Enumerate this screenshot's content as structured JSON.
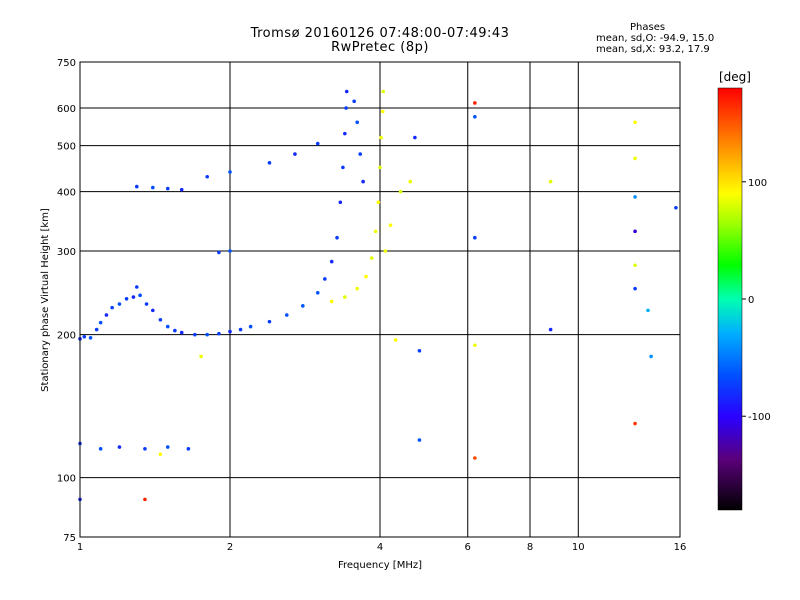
{
  "header": {
    "title_line1": "Tromsø 20160126 07:48:00-07:49:43",
    "title_line2": "RwPretec (8p)"
  },
  "stats": {
    "heading": "Phases",
    "line_o": "mean, sd,O: -94.9, 15.0",
    "line_x": "mean, sd,X:  93.2, 17.9"
  },
  "colorbar": {
    "unit_label": "[deg]",
    "range": [
      -180,
      180
    ],
    "ticks": [
      {
        "value": 100,
        "label": "100"
      },
      {
        "value": 0,
        "label": "0"
      },
      {
        "value": -100,
        "label": "-100"
      }
    ]
  },
  "chart_data": {
    "type": "scatter",
    "title": "Tromsø 20160126 07:48:00-07:49:43",
    "subtitle": "RwPretec (8p)",
    "xlabel": "Frequency [MHz]",
    "ylabel": "Stationary phase Virtual Height [km]",
    "x_scale": "log",
    "y_scale": "log",
    "xlim": [
      1,
      16
    ],
    "ylim": [
      75,
      750
    ],
    "grid": true,
    "x_ticks": [
      {
        "value": 1,
        "label": "1"
      },
      {
        "value": 2,
        "label": "2"
      },
      {
        "value": 4,
        "label": "4"
      },
      {
        "value": 6,
        "label": "6"
      },
      {
        "value": 8,
        "label": "8"
      },
      {
        "value": 10,
        "label": "10"
      },
      {
        "value": 16,
        "label": "16"
      }
    ],
    "y_ticks": [
      {
        "value": 75,
        "label": "75"
      },
      {
        "value": 100,
        "label": "100"
      },
      {
        "value": 200,
        "label": "200"
      },
      {
        "value": 300,
        "label": "300"
      },
      {
        "value": 400,
        "label": "400"
      },
      {
        "value": 500,
        "label": "500"
      },
      {
        "value": 600,
        "label": "600"
      },
      {
        "value": 750,
        "label": "750"
      }
    ],
    "color_by": "phase [deg]",
    "series": [
      {
        "mode": "O",
        "points": [
          {
            "x": 1.0,
            "y": 196,
            "phase": -110
          },
          {
            "x": 1.02,
            "y": 198,
            "phase": -105
          },
          {
            "x": 1.05,
            "y": 197,
            "phase": -100
          },
          {
            "x": 1.08,
            "y": 205,
            "phase": -105
          },
          {
            "x": 1.1,
            "y": 212,
            "phase": -100
          },
          {
            "x": 1.13,
            "y": 220,
            "phase": -110
          },
          {
            "x": 1.16,
            "y": 228,
            "phase": -105
          },
          {
            "x": 1.2,
            "y": 232,
            "phase": -100
          },
          {
            "x": 1.24,
            "y": 238,
            "phase": -105
          },
          {
            "x": 1.28,
            "y": 240,
            "phase": -110
          },
          {
            "x": 1.3,
            "y": 252,
            "phase": -105
          },
          {
            "x": 1.32,
            "y": 242,
            "phase": -100
          },
          {
            "x": 1.36,
            "y": 232,
            "phase": -105
          },
          {
            "x": 1.4,
            "y": 225,
            "phase": -110
          },
          {
            "x": 1.45,
            "y": 215,
            "phase": -105
          },
          {
            "x": 1.5,
            "y": 208,
            "phase": -100
          },
          {
            "x": 1.55,
            "y": 204,
            "phase": -105
          },
          {
            "x": 1.6,
            "y": 202,
            "phase": -110
          },
          {
            "x": 1.7,
            "y": 200,
            "phase": -105
          },
          {
            "x": 1.8,
            "y": 200,
            "phase": -100
          },
          {
            "x": 1.9,
            "y": 201,
            "phase": -105
          },
          {
            "x": 2.0,
            "y": 203,
            "phase": -110
          },
          {
            "x": 2.1,
            "y": 205,
            "phase": -105
          },
          {
            "x": 2.2,
            "y": 208,
            "phase": -100
          },
          {
            "x": 2.4,
            "y": 213,
            "phase": -105
          },
          {
            "x": 2.6,
            "y": 220,
            "phase": -100
          },
          {
            "x": 2.8,
            "y": 230,
            "phase": -95
          },
          {
            "x": 3.0,
            "y": 245,
            "phase": -100
          },
          {
            "x": 3.1,
            "y": 262,
            "phase": -105
          },
          {
            "x": 3.2,
            "y": 285,
            "phase": -110
          },
          {
            "x": 3.28,
            "y": 320,
            "phase": -105
          },
          {
            "x": 3.33,
            "y": 380,
            "phase": -110
          },
          {
            "x": 3.37,
            "y": 450,
            "phase": -105
          },
          {
            "x": 3.4,
            "y": 530,
            "phase": -110
          },
          {
            "x": 3.42,
            "y": 600,
            "phase": -105
          },
          {
            "x": 3.43,
            "y": 650,
            "phase": -110
          },
          {
            "x": 3.55,
            "y": 620,
            "phase": -105
          },
          {
            "x": 3.6,
            "y": 560,
            "phase": -100
          },
          {
            "x": 3.65,
            "y": 480,
            "phase": -105
          },
          {
            "x": 3.7,
            "y": 420,
            "phase": -110
          },
          {
            "x": 1.3,
            "y": 410,
            "phase": -105
          },
          {
            "x": 1.4,
            "y": 408,
            "phase": -100
          },
          {
            "x": 1.5,
            "y": 406,
            "phase": -105
          },
          {
            "x": 1.6,
            "y": 404,
            "phase": -110
          },
          {
            "x": 1.8,
            "y": 430,
            "phase": -105
          },
          {
            "x": 2.0,
            "y": 440,
            "phase": -100
          },
          {
            "x": 2.4,
            "y": 460,
            "phase": -105
          },
          {
            "x": 2.7,
            "y": 480,
            "phase": -110
          },
          {
            "x": 3.0,
            "y": 505,
            "phase": -105
          },
          {
            "x": 1.0,
            "y": 118,
            "phase": -105
          },
          {
            "x": 1.1,
            "y": 115,
            "phase": -100
          },
          {
            "x": 1.2,
            "y": 116,
            "phase": -110
          },
          {
            "x": 1.35,
            "y": 115,
            "phase": -105
          },
          {
            "x": 1.5,
            "y": 116,
            "phase": -100
          },
          {
            "x": 1.65,
            "y": 115,
            "phase": -105
          },
          {
            "x": 1.0,
            "y": 90,
            "phase": -110
          },
          {
            "x": 1.9,
            "y": 298,
            "phase": -105
          },
          {
            "x": 2.0,
            "y": 300,
            "phase": -100
          }
        ]
      },
      {
        "mode": "X",
        "points": [
          {
            "x": 3.2,
            "y": 235,
            "phase": 100
          },
          {
            "x": 3.4,
            "y": 240,
            "phase": 90
          },
          {
            "x": 3.6,
            "y": 250,
            "phase": 95
          },
          {
            "x": 3.75,
            "y": 265,
            "phase": 100
          },
          {
            "x": 3.85,
            "y": 290,
            "phase": 90
          },
          {
            "x": 3.92,
            "y": 330,
            "phase": 95
          },
          {
            "x": 3.97,
            "y": 380,
            "phase": 100
          },
          {
            "x": 4.0,
            "y": 450,
            "phase": 90
          },
          {
            "x": 4.02,
            "y": 520,
            "phase": 95
          },
          {
            "x": 4.05,
            "y": 590,
            "phase": 100
          },
          {
            "x": 4.06,
            "y": 650,
            "phase": 90
          },
          {
            "x": 4.1,
            "y": 300,
            "phase": 95
          },
          {
            "x": 4.2,
            "y": 340,
            "phase": 100
          },
          {
            "x": 4.4,
            "y": 400,
            "phase": 90
          },
          {
            "x": 4.6,
            "y": 420,
            "phase": 95
          },
          {
            "x": 4.3,
            "y": 195,
            "phase": 100
          },
          {
            "x": 1.75,
            "y": 180,
            "phase": 95
          },
          {
            "x": 1.45,
            "y": 112,
            "phase": 100
          },
          {
            "x": 6.2,
            "y": 190,
            "phase": 95
          },
          {
            "x": 8.8,
            "y": 420,
            "phase": 90
          },
          {
            "x": 13.0,
            "y": 560,
            "phase": 100
          },
          {
            "x": 13.0,
            "y": 470,
            "phase": 95
          },
          {
            "x": 13.0,
            "y": 280,
            "phase": 90
          }
        ]
      },
      {
        "mode": "scattered",
        "points": [
          {
            "x": 1.35,
            "y": 90,
            "phase": 170
          },
          {
            "x": 6.2,
            "y": 110,
            "phase": 160
          },
          {
            "x": 6.2,
            "y": 615,
            "phase": 170
          },
          {
            "x": 13.0,
            "y": 130,
            "phase": 165
          },
          {
            "x": 6.2,
            "y": 320,
            "phase": -105
          },
          {
            "x": 6.2,
            "y": 575,
            "phase": -100
          },
          {
            "x": 4.7,
            "y": 520,
            "phase": -110
          },
          {
            "x": 4.8,
            "y": 185,
            "phase": -105
          },
          {
            "x": 4.8,
            "y": 120,
            "phase": -100
          },
          {
            "x": 8.8,
            "y": 205,
            "phase": -110
          },
          {
            "x": 13.0,
            "y": 250,
            "phase": -105
          },
          {
            "x": 13.0,
            "y": 330,
            "phase": -130
          },
          {
            "x": 13.0,
            "y": 390,
            "phase": -60
          },
          {
            "x": 14.0,
            "y": 180,
            "phase": -60
          },
          {
            "x": 15.7,
            "y": 370,
            "phase": -105
          },
          {
            "x": 13.8,
            "y": 225,
            "phase": -40
          }
        ]
      }
    ]
  }
}
